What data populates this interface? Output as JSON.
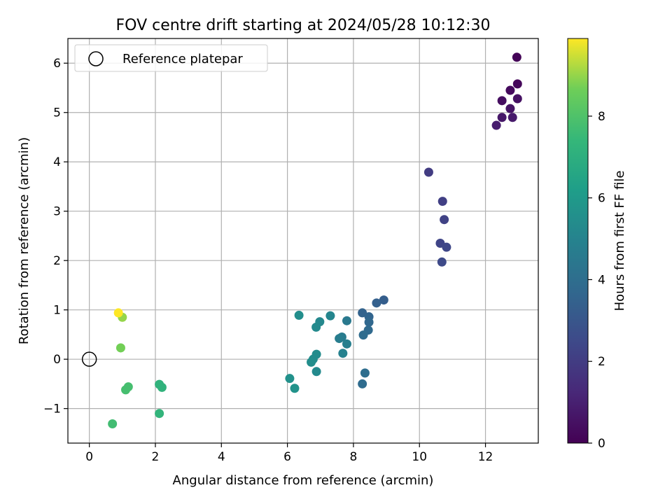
{
  "chart_data": {
    "type": "scatter",
    "title": "FOV centre drift starting at 2024/05/28 10:12:30",
    "xlabel": "Angular distance from reference (arcmin)",
    "ylabel": "Rotation from reference (arcmin)",
    "xlim": [
      -0.65,
      13.6
    ],
    "ylim": [
      -1.7,
      6.5
    ],
    "xticks": [
      0,
      2,
      4,
      6,
      8,
      10,
      12
    ],
    "yticks": [
      -1,
      0,
      1,
      2,
      3,
      4,
      5,
      6
    ],
    "grid": true,
    "legend": {
      "placement": "top-left",
      "entries": [
        "Reference platepar"
      ]
    },
    "reference_point": {
      "x": 0,
      "y": 0
    },
    "colorbar": {
      "label": "Hours from first FF file",
      "colormap": "viridis",
      "range": [
        0,
        9.9
      ],
      "ticks": [
        0,
        2,
        4,
        6,
        8
      ]
    },
    "points": [
      {
        "x": 12.95,
        "y": 6.12,
        "c": 0.1
      },
      {
        "x": 12.97,
        "y": 5.58,
        "c": 0.2
      },
      {
        "x": 12.75,
        "y": 5.45,
        "c": 0.3
      },
      {
        "x": 12.5,
        "y": 5.24,
        "c": 0.4
      },
      {
        "x": 12.97,
        "y": 5.28,
        "c": 0.5
      },
      {
        "x": 12.75,
        "y": 5.08,
        "c": 0.6
      },
      {
        "x": 12.5,
        "y": 4.9,
        "c": 0.7
      },
      {
        "x": 12.82,
        "y": 4.9,
        "c": 0.8
      },
      {
        "x": 12.33,
        "y": 4.74,
        "c": 0.9
      },
      {
        "x": 10.28,
        "y": 3.79,
        "c": 2.0
      },
      {
        "x": 10.7,
        "y": 3.2,
        "c": 2.1
      },
      {
        "x": 10.75,
        "y": 2.83,
        "c": 2.2
      },
      {
        "x": 10.63,
        "y": 2.35,
        "c": 2.3
      },
      {
        "x": 10.82,
        "y": 2.27,
        "c": 2.4
      },
      {
        "x": 10.68,
        "y": 1.97,
        "c": 2.5
      },
      {
        "x": 8.92,
        "y": 1.2,
        "c": 3.3
      },
      {
        "x": 8.7,
        "y": 1.14,
        "c": 3.4
      },
      {
        "x": 8.27,
        "y": 0.94,
        "c": 3.5
      },
      {
        "x": 8.47,
        "y": 0.86,
        "c": 3.6
      },
      {
        "x": 8.47,
        "y": 0.75,
        "c": 3.7
      },
      {
        "x": 8.45,
        "y": 0.59,
        "c": 3.8
      },
      {
        "x": 8.3,
        "y": 0.49,
        "c": 3.9
      },
      {
        "x": 8.35,
        "y": -0.28,
        "c": 4.0
      },
      {
        "x": 8.27,
        "y": -0.5,
        "c": 3.9
      },
      {
        "x": 7.8,
        "y": 0.78,
        "c": 4.5
      },
      {
        "x": 7.65,
        "y": 0.45,
        "c": 4.6
      },
      {
        "x": 7.57,
        "y": 0.42,
        "c": 4.7
      },
      {
        "x": 7.8,
        "y": 0.31,
        "c": 4.8
      },
      {
        "x": 7.68,
        "y": 0.12,
        "c": 4.9
      },
      {
        "x": 7.3,
        "y": 0.88,
        "c": 5.1
      },
      {
        "x": 6.98,
        "y": 0.76,
        "c": 5.2
      },
      {
        "x": 6.87,
        "y": 0.65,
        "c": 5.3
      },
      {
        "x": 6.35,
        "y": 0.89,
        "c": 5.5
      },
      {
        "x": 6.88,
        "y": 0.1,
        "c": 5.4
      },
      {
        "x": 6.78,
        "y": 0.0,
        "c": 5.4
      },
      {
        "x": 6.72,
        "y": -0.06,
        "c": 5.5
      },
      {
        "x": 6.88,
        "y": -0.25,
        "c": 5.3
      },
      {
        "x": 6.07,
        "y": -0.39,
        "c": 5.6
      },
      {
        "x": 6.22,
        "y": -0.59,
        "c": 5.7
      },
      {
        "x": 2.12,
        "y": -0.51,
        "c": 7.2
      },
      {
        "x": 2.2,
        "y": -0.57,
        "c": 7.2
      },
      {
        "x": 2.12,
        "y": -1.1,
        "c": 7.3
      },
      {
        "x": 1.18,
        "y": -0.56,
        "c": 7.8
      },
      {
        "x": 1.1,
        "y": -0.62,
        "c": 7.8
      },
      {
        "x": 0.7,
        "y": -1.31,
        "c": 7.7
      },
      {
        "x": 0.95,
        "y": 0.23,
        "c": 8.7
      },
      {
        "x": 1.0,
        "y": 0.85,
        "c": 9.0
      },
      {
        "x": 0.88,
        "y": 0.94,
        "c": 9.9
      }
    ]
  }
}
